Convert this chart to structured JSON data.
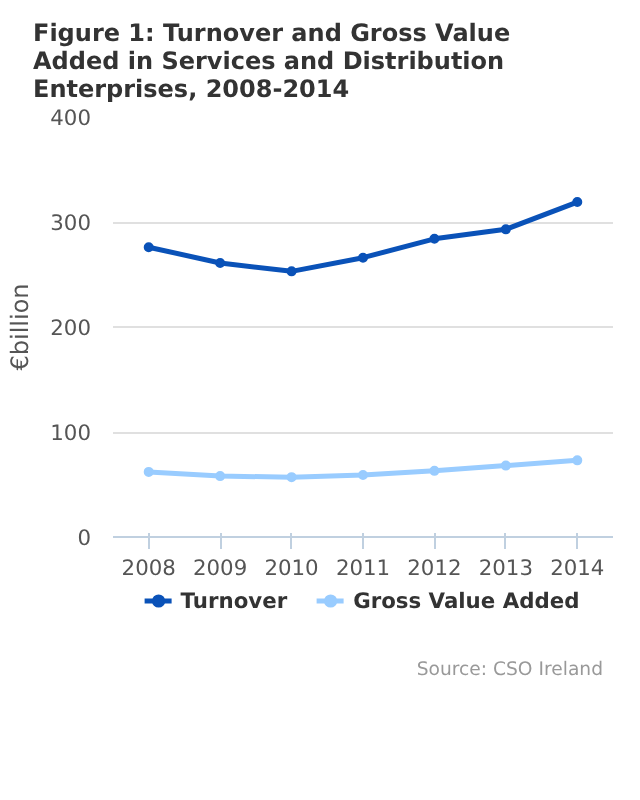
{
  "chart_data": {
    "type": "line",
    "title": "Figure 1: Turnover and Gross Value Added in Services and Distribution Enterprises, 2008-2014",
    "ylabel": "€billion",
    "categories": [
      "2008",
      "2009",
      "2010",
      "2011",
      "2012",
      "2013",
      "2014"
    ],
    "series": [
      {
        "name": "Turnover",
        "color": "#0a52b8",
        "values": [
          276,
          261,
          253,
          266,
          284,
          293,
          319
        ]
      },
      {
        "name": "Gross Value Added",
        "color": "#99ccff",
        "values": [
          62,
          58,
          57,
          59,
          63,
          68,
          73
        ]
      }
    ],
    "ylim": [
      0,
      400
    ],
    "yticks": [
      0,
      100,
      200,
      300,
      400
    ],
    "grid": "y",
    "legend": "bottom",
    "marker": "circle",
    "line_style": "solid",
    "annotations": [
      "Source: CSO Ireland"
    ]
  }
}
